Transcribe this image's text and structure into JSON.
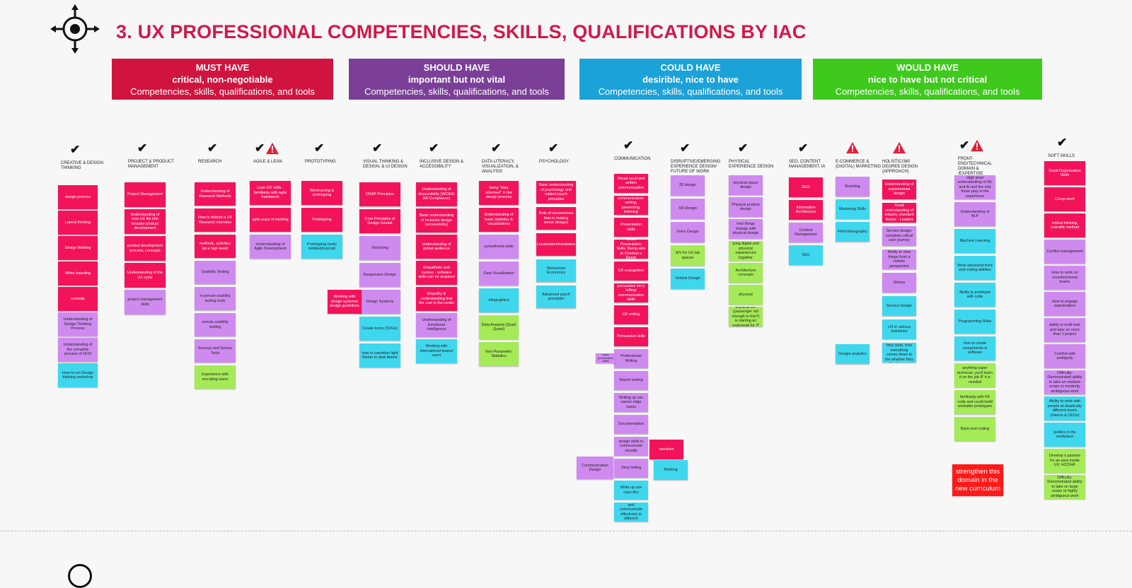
{
  "title": "3. UX PROFESSIONAL COMPETENCIES, SKILLS, QUALIFICATIONS BY IAC",
  "colors": {
    "must": "#d0143f",
    "should": "#7b3f98",
    "could": "#1aa2d9",
    "would": "#3ec91c",
    "red": "#f2135b",
    "purple": "#cf8af0",
    "cyan": "#3fd7ee",
    "green": "#a5ea57"
  },
  "banners": [
    {
      "key": "must",
      "line1": "MUST HAVE",
      "line2": "critical, non-negotiable",
      "line3": "Competencies, skills, qualifications, and tools"
    },
    {
      "key": "should",
      "line1": "SHOULD HAVE",
      "line2": "important but not vital",
      "line3": "Competencies, skills, qualifications, and tools"
    },
    {
      "key": "could",
      "line1": "COULD  HAVE",
      "line2": "desirible, nice to have",
      "line3": "Competencies, skills, qualifications, and tools"
    },
    {
      "key": "would",
      "line1": "WOULD  HAVE",
      "line2": "nice to have but not critical",
      "line3": "Competencies, skills, qualifications, and tools"
    }
  ],
  "columns": [
    {
      "header": "CREATIVE & DESIGN THINKING",
      "marks": [
        "check"
      ],
      "cards": [
        {
          "text": "design process",
          "c": "red"
        },
        {
          "text": "Lateral thinking",
          "c": "red"
        },
        {
          "text": "Design thinking",
          "c": "red"
        },
        {
          "text": "White boarding",
          "c": "red"
        },
        {
          "text": "curiosity",
          "c": "red"
        },
        {
          "text": "Understanding of Design Thinking Process",
          "c": "purple"
        },
        {
          "text": "Understanding of the complete process of HCD",
          "c": "purple"
        },
        {
          "text": "How to run Design thinking workshop",
          "c": "cyan"
        }
      ]
    },
    {
      "header": "PROJECT & PRODUCT MANAGEMENT",
      "marks": [
        "check"
      ],
      "cards": [
        {
          "text": "Project Management",
          "c": "red"
        },
        {
          "text": "Understanding of how UX fits into broader product development",
          "c": "red"
        },
        {
          "text": "product development process, concepts",
          "c": "red"
        },
        {
          "text": "Understanding of the UX cycle",
          "c": "red"
        },
        {
          "text": "project management skills",
          "c": "purple"
        }
      ]
    },
    {
      "header": "RESEARCH",
      "marks": [
        "check"
      ],
      "cards": [
        {
          "text": "Understanding of Research Methods",
          "c": "red"
        },
        {
          "text": "How to debrief a UX Research interview",
          "c": "red"
        },
        {
          "text": "methods, activities (at a high level)",
          "c": "red"
        },
        {
          "text": "Usability Testing",
          "c": "purple"
        },
        {
          "text": "in person usability testing tools",
          "c": "purple"
        },
        {
          "text": "remote usability testing",
          "c": "purple"
        },
        {
          "text": "Surveys and Survey Tools",
          "c": "purple"
        },
        {
          "text": "Experience with recruiting users",
          "c": "green"
        }
      ]
    },
    {
      "header": "AGILE & LEAN",
      "marks": [
        "check",
        "warn"
      ],
      "cards": [
        {
          "text": "Lean UX skills - familiarity with agile framework",
          "c": "red"
        },
        {
          "text": "agile ways of working",
          "c": "red"
        },
        {
          "text": "Understanding of Agile Development",
          "c": "purple"
        }
      ]
    },
    {
      "header": "PROTOTYPING",
      "marks": [
        "check"
      ],
      "cards": [
        {
          "text": "Wireframing & prototyping",
          "c": "red"
        },
        {
          "text": "Prototyping",
          "c": "red"
        },
        {
          "text": "Prototyping (web/ mobile/physical)",
          "c": "cyan"
        }
      ]
    },
    {
      "header": "VISUAL THINKING & DESIGN, & UI DESIGN",
      "marks": [
        "check"
      ],
      "cards": [
        {
          "text": "CRAP Principles",
          "c": "red"
        },
        {
          "text": "Core Principles of Design Gestalt",
          "c": "red"
        },
        {
          "text": "Sketching",
          "c": "purple"
        },
        {
          "text": "Responsive Design",
          "c": "purple"
        },
        {
          "text": "Design Systems",
          "c": "purple"
        },
        {
          "text": "Create Icons (SVGs)",
          "c": "cyan"
        },
        {
          "text": "how to transition light theme to dark theme",
          "c": "cyan"
        }
      ]
    },
    {
      "header": "INCLUSIVE DESIGN & ACCESSIBILITY",
      "marks": [
        "check"
      ],
      "cards": [
        {
          "text": "Understanding of Accessibility (WCAG/ AA Compliance)",
          "c": "red"
        },
        {
          "text": "Basic understanding of inclusive design (accessibility)",
          "c": "red"
        },
        {
          "text": "Understanding of global audience",
          "c": "red"
        },
        {
          "text": "Empathetic and curious - software skills can be acquired",
          "c": "red"
        },
        {
          "text": "Empathy & understanding that the user is the center",
          "c": "red"
        },
        {
          "text": "Understanding of Emotional Intelligence",
          "c": "purple"
        },
        {
          "text": "Working with international teams/ users",
          "c": "cyan"
        }
      ]
    },
    {
      "header": "DATA LITERACY, VISUALIZATION, & ANALYSIS",
      "marks": [
        "check"
      ],
      "cards": [
        {
          "text": "being \"data informed\" in the design process",
          "c": "red"
        },
        {
          "text": "Understanding of basic statistics & visualizations",
          "c": "red"
        },
        {
          "text": "synesthesia stats",
          "c": "purple"
        },
        {
          "text": "Data Visualization",
          "c": "purple"
        },
        {
          "text": "Infographics",
          "c": "cyan"
        },
        {
          "text": "Data Analysis (Qual/ Quant)",
          "c": "green"
        },
        {
          "text": "Non-Parametric Statistics",
          "c": "green"
        }
      ]
    },
    {
      "header": "PSYCHOLOGY",
      "marks": [
        "check"
      ],
      "cards": [
        {
          "text": "Basic understanding of psychology and related psych principles",
          "c": "red"
        },
        {
          "text": "Role of unconscious bias in making worse designs",
          "c": "red"
        },
        {
          "text": "Localization/translation",
          "c": "red"
        },
        {
          "text": "Behavioral Economics",
          "c": "cyan"
        },
        {
          "text": "Advanced psych principles",
          "c": "cyan"
        }
      ]
    },
    {
      "header": "COMMUNICATION",
      "marks": [
        "check"
      ],
      "cards": [
        {
          "text": "Visual aural and written communication",
          "c": "red"
        },
        {
          "text": "communication: writing, presenting, listening",
          "c": "red"
        },
        {
          "text": "Presentation skills",
          "c": "red"
        },
        {
          "text": "Good Presentation Skills. Being able to Conduct a Room",
          "c": "red"
        },
        {
          "text": "UX evangelism",
          "c": "red"
        },
        {
          "text": "persuasive story telling/ communication skills",
          "c": "red"
        },
        {
          "text": "UX writing",
          "c": "red"
        },
        {
          "text": "Persuasive skills",
          "c": "red"
        },
        {
          "text": "Professional Writing",
          "c": "purple"
        },
        {
          "text": "Report writing",
          "c": "purple"
        },
        {
          "text": "Writing up use cases/ edge cases",
          "c": "purple"
        },
        {
          "text": "Documentation",
          "c": "purple"
        },
        {
          "text": "design skills to communicate visually",
          "c": "purple"
        },
        {
          "text": "Story telling",
          "c": "purple"
        },
        {
          "text": "Write up use case doc",
          "c": "cyan"
        },
        {
          "text": "Ability to pivot and communicate effectively to different audiences",
          "c": "cyan"
        }
      ]
    },
    {
      "header": "DISRUPTIVE/EMERGING EXPERIENCE DESIGN/ FUTURE OF WORK",
      "marks": [
        "check"
      ],
      "cards": [
        {
          "text": "3D design",
          "c": "purple"
        },
        {
          "text": "XR Design",
          "c": "purple"
        },
        {
          "text": "Voice Design",
          "c": "purple"
        },
        {
          "text": "A/V for UX lab spaces",
          "c": "green"
        },
        {
          "text": "Vehicle Design",
          "c": "cyan"
        }
      ]
    },
    {
      "header": "PHYSICAL EXPERIENCE DESIGN",
      "marks": [
        "check"
      ],
      "cards": [
        {
          "text": "physical space design",
          "c": "purple"
        },
        {
          "text": "Physical product design",
          "c": "purple"
        },
        {
          "text": "how things change with physical design",
          "c": "purple"
        },
        {
          "text": "tying digital and physical experiences together",
          "c": "green"
        },
        {
          "text": "Architecture concepts",
          "c": "green"
        },
        {
          "text": "physical",
          "c": "green"
        },
        {
          "text": "physical UX (passenger rail enough to this?) is starting an undergrad for IT",
          "c": "green"
        }
      ]
    },
    {
      "header": "SEO, CONTENT MANAGEMENT, IA",
      "marks": [
        "check"
      ],
      "cards": [
        {
          "text": "SEO",
          "c": "red"
        },
        {
          "text": "Information Architecture",
          "c": "red"
        },
        {
          "text": "Content Management",
          "c": "purple"
        },
        {
          "text": "SEO",
          "c": "cyan"
        }
      ]
    },
    {
      "header": "E-COMMERCE & (DIGITAL) MARKETING",
      "marks": [
        "warn"
      ],
      "cards": [
        {
          "text": "Branding",
          "c": "purple"
        },
        {
          "text": "Marketing Skills",
          "c": "cyan"
        },
        {
          "text": "Film/Videography",
          "c": "cyan"
        },
        {
          "text": "Google analytics",
          "c": "cyan"
        }
      ]
    },
    {
      "header": "HOLISTIC/360 DEGREE DESIGN (APPROACH)",
      "marks": [
        "warn"
      ],
      "cards": [
        {
          "text": "Understanding of experimental design",
          "c": "red"
        },
        {
          "text": "Good understanding of industry standard Teams - Leaders",
          "c": "red"
        },
        {
          "text": "Service design: complete critical user journey",
          "c": "purple"
        },
        {
          "text": "Ability to view things from a holistic perspective",
          "c": "purple"
        },
        {
          "text": "History",
          "c": "purple"
        },
        {
          "text": "Service Design",
          "c": "cyan"
        },
        {
          "text": "UX in various Industries",
          "c": "cyan"
        },
        {
          "text": "\"business\", how they work, how everything comes down to the whether they like it or not",
          "c": "cyan"
        }
      ]
    },
    {
      "header": "FRONT-END/TECHNICAL DOMAIN & /EXPERTISE",
      "marks": [
        "check",
        "warn"
      ],
      "cards": [
        {
          "text": "High level understanding of ML and AI and the role those play in the experience",
          "c": "purple"
        },
        {
          "text": "Understanding of NLP",
          "c": "purple"
        },
        {
          "text": "Machine Learning",
          "c": "cyan"
        },
        {
          "text": "More advanced front end coding abilities",
          "c": "cyan"
        },
        {
          "text": "Ability to prototype with code",
          "c": "cyan"
        },
        {
          "text": "Programming Skills",
          "c": "cyan"
        },
        {
          "text": "how to create components in software",
          "c": "cyan"
        },
        {
          "text": "anything super technical; you'll learn it on the job IF it is needed",
          "c": "green"
        },
        {
          "text": "familiarity with FE code and could build workable prototypes",
          "c": "green"
        },
        {
          "text": "Back-end coding",
          "c": "green"
        }
      ]
    },
    {
      "header": "SOFT SKILLS",
      "marks": [
        "check"
      ],
      "cards": [
        {
          "text": "Good Organization Skills",
          "c": "red"
        },
        {
          "text": "Croup-work",
          "c": "red"
        },
        {
          "text": "critical thinking, scientific method",
          "c": "red"
        },
        {
          "text": "Conflict management",
          "c": "purple"
        },
        {
          "text": "How to work on crossfunctional teams",
          "c": "purple"
        },
        {
          "text": "How to engage stakeholders",
          "c": "purple"
        },
        {
          "text": "ability to multi task and take on more than 1 project",
          "c": "purple"
        },
        {
          "text": "Comfort with ambiguity",
          "c": "purple"
        },
        {
          "text": "Difficulty: Demonstrated ability to take on medium scope or modestly ambiguous work",
          "c": "purple"
        },
        {
          "text": "Ability to work with people at drastically different levels (Interns & CEOs)",
          "c": "cyan"
        },
        {
          "text": "politics in the workplace",
          "c": "cyan"
        },
        {
          "text": "Develop a passion for an area inside UX: HCD/HF",
          "c": "green"
        },
        {
          "text": "Difficulty: Demonstrated ability to take on large scope or highly ambiguous work",
          "c": "green"
        }
      ]
    }
  ],
  "extras": [
    {
      "text": "Working with design systems/ design guidelines",
      "c": "red"
    },
    {
      "text": "basic presentation skills",
      "c": "purple"
    },
    {
      "text": "narrative",
      "c": "red"
    },
    {
      "text": "Pitching",
      "c": "cyan"
    },
    {
      "text": "Communication Design",
      "c": "purple"
    }
  ],
  "callout": "strengthen this domain in the new curriculum"
}
